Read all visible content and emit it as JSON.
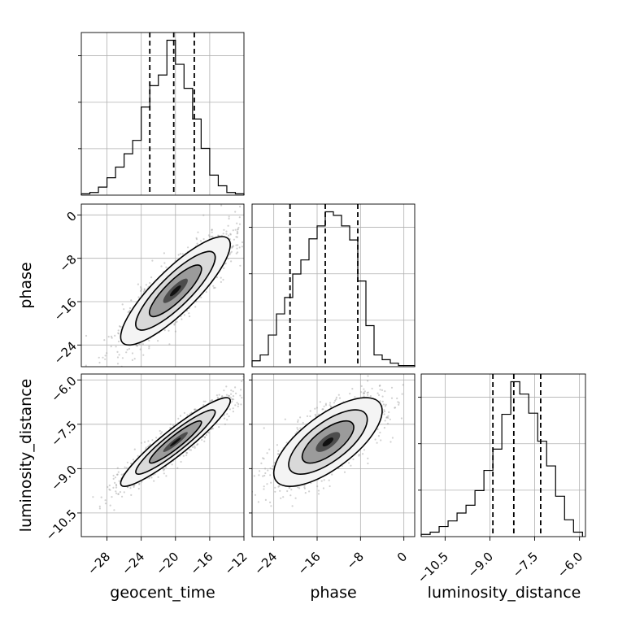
{
  "chart_data": {
    "type": "corner",
    "parameters": [
      "geocent_time",
      "phase",
      "luminosity_distance"
    ],
    "axis_labels": {
      "geocent_time": "geocent_time",
      "phase": "phase",
      "luminosity_distance": "luminosity_distance"
    },
    "ranges": {
      "geocent_time": [
        -31,
        -12
      ],
      "phase": [
        -28,
        2
      ],
      "luminosity_distance": [
        -11.3,
        -5.8
      ]
    },
    "ticks": {
      "geocent_time": {
        "values": [
          -28,
          -24,
          -20,
          -16,
          -12
        ],
        "labels": [
          "−28",
          "−24",
          "−20",
          "−16",
          "−12"
        ]
      },
      "phase": {
        "values": [
          -24,
          -16,
          -8,
          0
        ],
        "labels": [
          "−24",
          "−16",
          "−8",
          "0"
        ]
      },
      "luminosity_distance": {
        "values": [
          -10.5,
          -9.0,
          -7.5,
          -6.0
        ],
        "labels": [
          "−10.5",
          "−9.0",
          "−7.5",
          "−6.0"
        ]
      }
    },
    "quantiles": {
      "geocent_time": [
        -23.0,
        -20.2,
        -17.8
      ],
      "phase": [
        -21.0,
        -14.5,
        -8.5
      ],
      "luminosity_distance": [
        -8.9,
        -8.2,
        -7.3
      ]
    },
    "histograms": {
      "geocent_time": {
        "edges": [
          -31.0,
          -30.0,
          -29.0,
          -28.0,
          -27.0,
          -26.0,
          -25.0,
          -24.0,
          -23.0,
          -22.0,
          -21.0,
          -20.0,
          -19.0,
          -18.0,
          -17.0,
          -16.0,
          -15.0,
          -14.0,
          -13.0,
          -12.0
        ],
        "counts": [
          1,
          2,
          6,
          13,
          21,
          31,
          41,
          66,
          82,
          90,
          116,
          98,
          80,
          57,
          35,
          15,
          7,
          2,
          1
        ]
      },
      "phase": {
        "edges": [
          -28,
          -26.5,
          -25,
          -23.5,
          -22,
          -20.5,
          -19,
          -17.5,
          -16,
          -14.5,
          -13,
          -11.5,
          -10,
          -8.5,
          -7,
          -5.5,
          -4,
          -2.5,
          -1,
          0.5,
          2
        ],
        "counts": [
          5,
          10,
          27,
          45,
          59,
          79,
          91,
          109,
          120,
          132,
          129,
          120,
          108,
          73,
          35,
          10,
          6,
          3,
          1,
          1
        ]
      },
      "luminosity_distance": {
        "edges": [
          -11.3,
          -11.0,
          -10.7,
          -10.4,
          -10.1,
          -9.8,
          -9.5,
          -9.2,
          -8.9,
          -8.6,
          -8.3,
          -8.0,
          -7.7,
          -7.4,
          -7.1,
          -6.8,
          -6.5,
          -6.2,
          -5.9
        ],
        "counts": [
          2,
          4,
          9,
          14,
          21,
          28,
          41,
          59,
          78,
          109,
          138,
          127,
          110,
          85,
          63,
          36,
          15,
          4
        ]
      }
    },
    "joint_2d": [
      {
        "x": "geocent_time",
        "y": "phase",
        "mean": [
          -20,
          -14
        ],
        "sd": [
          3.2,
          5.0
        ],
        "rho": 0.85
      },
      {
        "x": "geocent_time",
        "y": "luminosity_distance",
        "mean": [
          -20,
          -8.1
        ],
        "sd": [
          3.2,
          0.75
        ],
        "rho": 0.93
      },
      {
        "x": "phase",
        "y": "luminosity_distance",
        "mean": [
          -14,
          -8.1
        ],
        "sd": [
          5.0,
          0.75
        ],
        "rho": 0.7
      }
    ],
    "grid": true,
    "colors": {
      "line": "#000000",
      "grid": "#b0b0b0",
      "points": "#9a9a9a"
    }
  }
}
